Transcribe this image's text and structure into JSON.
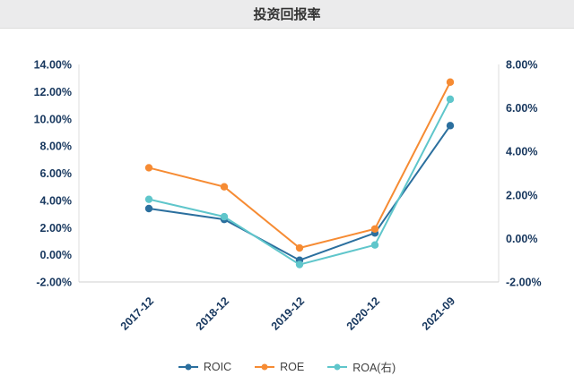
{
  "header": {
    "title": "投资回报率"
  },
  "chart_data": {
    "type": "line",
    "title": "投资回报率",
    "categories": [
      "2017-12",
      "2018-12",
      "2019-12",
      "2020-12",
      "2021-09"
    ],
    "series": [
      {
        "name": "ROIC",
        "axis": "left",
        "color": "#2b6f9e",
        "values": [
          3.4,
          2.6,
          -0.4,
          1.6,
          9.5
        ]
      },
      {
        "name": "ROE",
        "axis": "left",
        "color": "#f68b33",
        "values": [
          6.4,
          5.0,
          0.5,
          1.9,
          12.7
        ]
      },
      {
        "name": "ROA(右)",
        "axis": "right",
        "color": "#5fc6cb",
        "values": [
          1.8,
          1.0,
          -1.2,
          -0.3,
          6.4
        ]
      }
    ],
    "left_axis": {
      "min": -2,
      "max": 14,
      "step": 2,
      "format": "percent",
      "tick_labels": [
        "14.00%",
        "12.00%",
        "10.00%",
        "8.00%",
        "6.00%",
        "4.00%",
        "2.00%",
        "0.00%",
        "-2.00%"
      ]
    },
    "right_axis": {
      "min": -2,
      "max": 8,
      "step": 2,
      "format": "percent",
      "tick_labels": [
        "8.00%",
        "6.00%",
        "4.00%",
        "2.00%",
        "0.00%",
        "-2.00%"
      ]
    },
    "legend_position": "bottom",
    "grid": false
  }
}
